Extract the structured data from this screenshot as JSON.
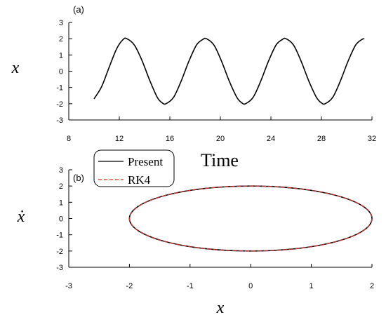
{
  "chart_data": [
    {
      "panel_label": "(a)",
      "type": "line",
      "xlabel": "Time",
      "ylabel": "x",
      "xlim": [
        8,
        32
      ],
      "ylim": [
        -3,
        3
      ],
      "xticks": [
        "8",
        "12",
        "16",
        "20",
        "24",
        "28",
        "32"
      ],
      "yticks": [
        "-3",
        "-2",
        "-1",
        "0",
        "1",
        "2",
        "3"
      ],
      "series": [
        {
          "name": "Present",
          "color": "#000000",
          "x": [
            10.0,
            10.6,
            11.2,
            11.8,
            12.3,
            12.6,
            13.2,
            13.8,
            14.4,
            15.0,
            15.4,
            15.7,
            16.3,
            16.9,
            17.5,
            18.1,
            18.6,
            18.9,
            19.5,
            20.1,
            20.7,
            21.3,
            21.7,
            22.0,
            22.6,
            23.2,
            23.8,
            24.4,
            24.9,
            25.2,
            25.8,
            26.4,
            27.0,
            27.6,
            28.0,
            28.3,
            28.9,
            29.5,
            30.1,
            30.7,
            31.2,
            31.4
          ],
          "y": [
            -1.7,
            -0.95,
            0.25,
            1.4,
            1.95,
            2.0,
            1.6,
            0.65,
            -0.55,
            -1.6,
            -1.95,
            -2.0,
            -1.6,
            -0.6,
            0.6,
            1.6,
            1.95,
            2.0,
            1.6,
            0.6,
            -0.6,
            -1.6,
            -1.95,
            -2.0,
            -1.6,
            -0.6,
            0.6,
            1.6,
            1.95,
            2.0,
            1.6,
            0.6,
            -0.6,
            -1.6,
            -1.95,
            -2.0,
            -1.6,
            -0.6,
            0.6,
            1.6,
            1.95,
            2.0
          ]
        }
      ]
    },
    {
      "panel_label": "(b)",
      "type": "line",
      "xlabel": "x",
      "ylabel": "ẋ",
      "xlim": [
        -3,
        2
      ],
      "ylim": [
        -3,
        3
      ],
      "xticks": [
        "-3",
        "-2",
        "-1",
        "0",
        "1",
        "2"
      ],
      "yticks": [
        "-3",
        "-2",
        "-1",
        "0",
        "1",
        "2",
        "3"
      ],
      "legend": {
        "placement": "top-left",
        "entries": [
          "Present",
          "RK4"
        ]
      },
      "series": [
        {
          "name": "Present",
          "color": "#000000",
          "style": "solid",
          "x": [
            2.0,
            1.73,
            1.0,
            0.0,
            -1.0,
            -1.73,
            -2.0,
            -1.73,
            -1.0,
            0.0,
            1.0,
            1.73,
            2.0
          ],
          "y": [
            0.0,
            1.0,
            1.73,
            2.0,
            1.73,
            1.0,
            0.0,
            -1.0,
            -1.73,
            -2.0,
            -1.73,
            -1.0,
            0.0
          ]
        },
        {
          "name": "RK4",
          "color": "#e0302a",
          "style": "dashed",
          "x": [
            2.0,
            1.73,
            1.0,
            0.0,
            -1.0,
            -1.73,
            -2.0,
            -1.73,
            -1.0,
            0.0,
            1.0,
            1.73,
            2.0
          ],
          "y": [
            0.0,
            1.0,
            1.73,
            2.0,
            1.73,
            1.0,
            0.0,
            -1.0,
            -1.73,
            -2.0,
            -1.73,
            -1.0,
            0.0
          ]
        }
      ]
    }
  ]
}
